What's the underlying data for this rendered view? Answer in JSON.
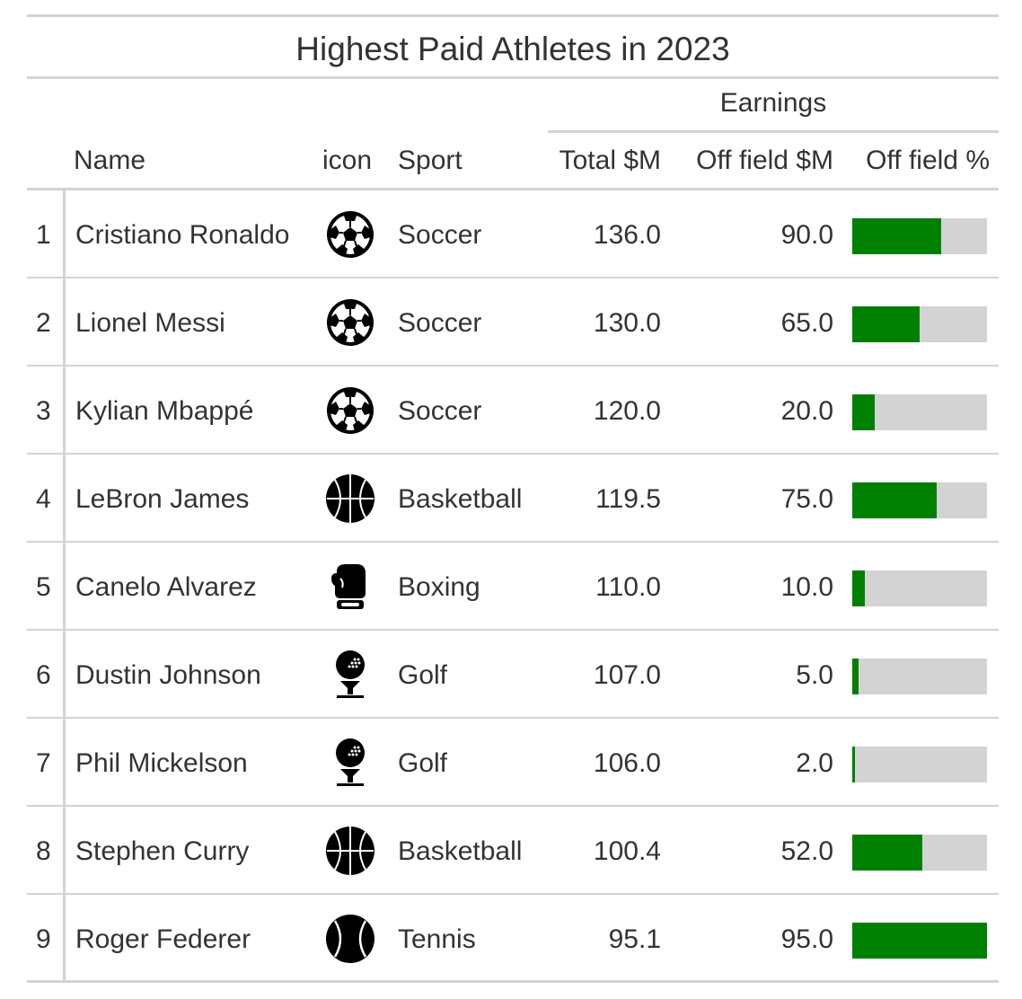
{
  "chart_data": {
    "type": "table",
    "title": "Highest Paid Athletes in 2023",
    "spanner_label": "Earnings",
    "columns": {
      "name": "Name",
      "icon": "icon",
      "sport": "Sport",
      "total": "Total $M",
      "off_field": "Off field $M",
      "off_field_pct": "Off field %"
    },
    "colors": {
      "bar_fill": "#008000",
      "bar_track": "#d3d3d3",
      "rule": "#d3d3d3",
      "text": "#333333"
    },
    "rows": [
      {
        "rank": "1",
        "name": "Cristiano Ronaldo",
        "icon": "soccer-ball-icon",
        "sport": "Soccer",
        "total": "136.0",
        "off_field": "90.0",
        "off_field_pct": 0.66
      },
      {
        "rank": "2",
        "name": "Lionel Messi",
        "icon": "soccer-ball-icon",
        "sport": "Soccer",
        "total": "130.0",
        "off_field": "65.0",
        "off_field_pct": 0.5
      },
      {
        "rank": "3",
        "name": "Kylian Mbappé",
        "icon": "soccer-ball-icon",
        "sport": "Soccer",
        "total": "120.0",
        "off_field": "20.0",
        "off_field_pct": 0.167
      },
      {
        "rank": "4",
        "name": "LeBron James",
        "icon": "basketball-icon",
        "sport": "Basketball",
        "total": "119.5",
        "off_field": "75.0",
        "off_field_pct": 0.628
      },
      {
        "rank": "5",
        "name": "Canelo Alvarez",
        "icon": "boxing-glove-icon",
        "sport": "Boxing",
        "total": "110.0",
        "off_field": "10.0",
        "off_field_pct": 0.091
      },
      {
        "rank": "6",
        "name": "Dustin Johnson",
        "icon": "golf-ball-tee-icon",
        "sport": "Golf",
        "total": "107.0",
        "off_field": "5.0",
        "off_field_pct": 0.047
      },
      {
        "rank": "7",
        "name": "Phil Mickelson",
        "icon": "golf-ball-tee-icon",
        "sport": "Golf",
        "total": "106.0",
        "off_field": "2.0",
        "off_field_pct": 0.019
      },
      {
        "rank": "8",
        "name": "Stephen Curry",
        "icon": "basketball-icon",
        "sport": "Basketball",
        "total": "100.4",
        "off_field": "52.0",
        "off_field_pct": 0.518
      },
      {
        "rank": "9",
        "name": "Roger Federer",
        "icon": "tennis-ball-icon",
        "sport": "Tennis",
        "total": "95.1",
        "off_field": "95.0",
        "off_field_pct": 0.999
      }
    ]
  }
}
